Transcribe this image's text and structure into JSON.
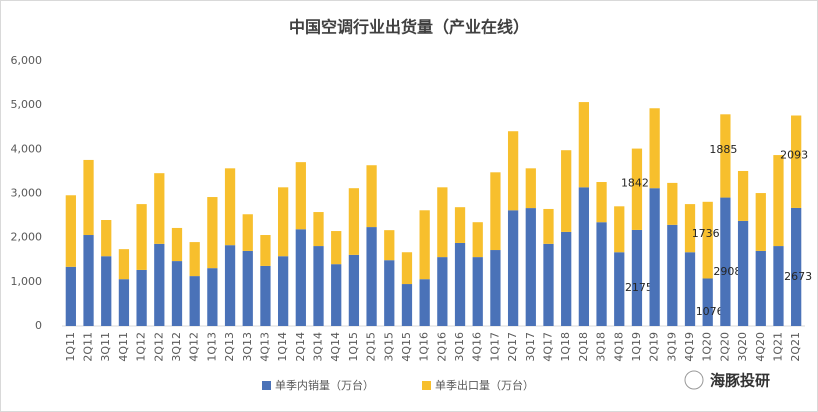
{
  "chart_data": {
    "type": "stacked_bar",
    "title": "中国空调行业出货量（产业在线）",
    "categories": [
      "1Q11",
      "2Q11",
      "3Q11",
      "4Q11",
      "1Q12",
      "2Q12",
      "3Q12",
      "4Q12",
      "1Q13",
      "2Q13",
      "3Q13",
      "4Q13",
      "1Q14",
      "2Q14",
      "3Q14",
      "4Q14",
      "1Q15",
      "2Q15",
      "3Q15",
      "4Q15",
      "1Q16",
      "2Q16",
      "3Q16",
      "4Q16",
      "1Q17",
      "2Q17",
      "3Q17",
      "4Q17",
      "1Q18",
      "2Q18",
      "3Q18",
      "4Q18",
      "1Q19",
      "2Q19",
      "3Q19",
      "4Q19",
      "1Q20",
      "2Q20",
      "3Q20",
      "4Q20",
      "1Q21",
      "2Q21"
    ],
    "series": [
      {
        "name": "单季内销量（万台）",
        "color": "#4a72b8",
        "values": [
          1340,
          2060,
          1580,
          1060,
          1270,
          1860,
          1470,
          1130,
          1310,
          1830,
          1700,
          1360,
          1580,
          2190,
          1810,
          1400,
          1610,
          2240,
          1490,
          950,
          1060,
          1560,
          1880,
          1560,
          1720,
          2620,
          2670,
          1860,
          2130,
          3140,
          2350,
          1670,
          2175,
          3120,
          2290,
          1670,
          1076,
          2908,
          2380,
          1700,
          1810,
          2673
        ]
      },
      {
        "name": "单季出口量（万台）",
        "color": "#f7bf2d",
        "values": [
          1620,
          1700,
          820,
          680,
          1490,
          1600,
          750,
          770,
          1610,
          1740,
          830,
          700,
          1560,
          1520,
          770,
          750,
          1510,
          1400,
          680,
          720,
          1560,
          1580,
          810,
          790,
          1760,
          1790,
          900,
          790,
          1850,
          1930,
          910,
          1040,
          1842,
          1810,
          950,
          1090,
          1736,
          1885,
          1130,
          1310,
          2060,
          2093
        ]
      }
    ],
    "data_labels": [
      32,
      36,
      37,
      41
    ],
    "ylim": [
      0,
      6000
    ],
    "yticks": [
      0,
      {
        "value": 1000,
        "label": "1,000"
      },
      {
        "value": 2000,
        "label": "2,000"
      },
      {
        "value": 3000,
        "label": "3,000"
      },
      {
        "value": 4000,
        "label": "4,000"
      },
      {
        "value": 5000,
        "label": "5,000"
      },
      {
        "value": 6000,
        "label": "6,000"
      }
    ],
    "grid": false,
    "legend": "bottom",
    "brand": "海豚投研"
  }
}
